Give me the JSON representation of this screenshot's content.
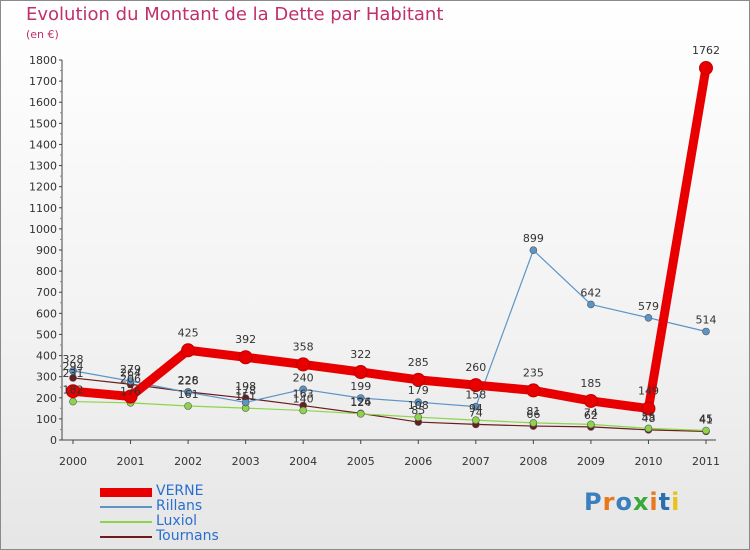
{
  "header": {
    "title": "Evolution du Montant de la Dette par Habitant",
    "unit": "(en €)"
  },
  "logo": {
    "text": "Proxiti",
    "colors": [
      "#3a7fc0",
      "#e8771e",
      "#3a7fc0",
      "#3aa83a",
      "#e8771e",
      "#2a6fb0",
      "#e8c21e"
    ]
  },
  "chart_data": {
    "type": "line",
    "title": "Evolution du Montant de la Dette par Habitant",
    "ylabel": "(en €)",
    "xlabel": "",
    "ylim": [
      0,
      1800
    ],
    "y_ticks": [
      0,
      100,
      200,
      300,
      400,
      500,
      600,
      700,
      800,
      900,
      1000,
      1100,
      1200,
      1300,
      1400,
      1500,
      1600,
      1700,
      1800
    ],
    "categories": [
      "2000",
      "2001",
      "2002",
      "2003",
      "2004",
      "2005",
      "2006",
      "2007",
      "2008",
      "2009",
      "2010",
      "2011"
    ],
    "grid": false,
    "legend_position": "bottom-left",
    "series": [
      {
        "name": "VERNE",
        "color": "#e80000",
        "values": [
          231,
          206,
          425,
          392,
          358,
          322,
          285,
          260,
          235,
          185,
          149,
          1762
        ]
      },
      {
        "name": "Rillans",
        "color": "#5b95c8",
        "values": [
          328,
          279,
          226,
          178,
          240,
          199,
          179,
          158,
          899,
          642,
          579,
          514
        ]
      },
      {
        "name": "Luxiol",
        "color": "#8ed44a",
        "values": [
          182,
          176,
          161,
          151,
          140,
          124,
          108,
          94,
          81,
          74,
          55,
          45
        ]
      },
      {
        "name": "Tournans",
        "color": "#6b1c1c",
        "values": [
          294,
          264,
          228,
          198,
          163,
          126,
          85,
          74,
          66,
          62,
          48,
          41
        ]
      }
    ]
  }
}
